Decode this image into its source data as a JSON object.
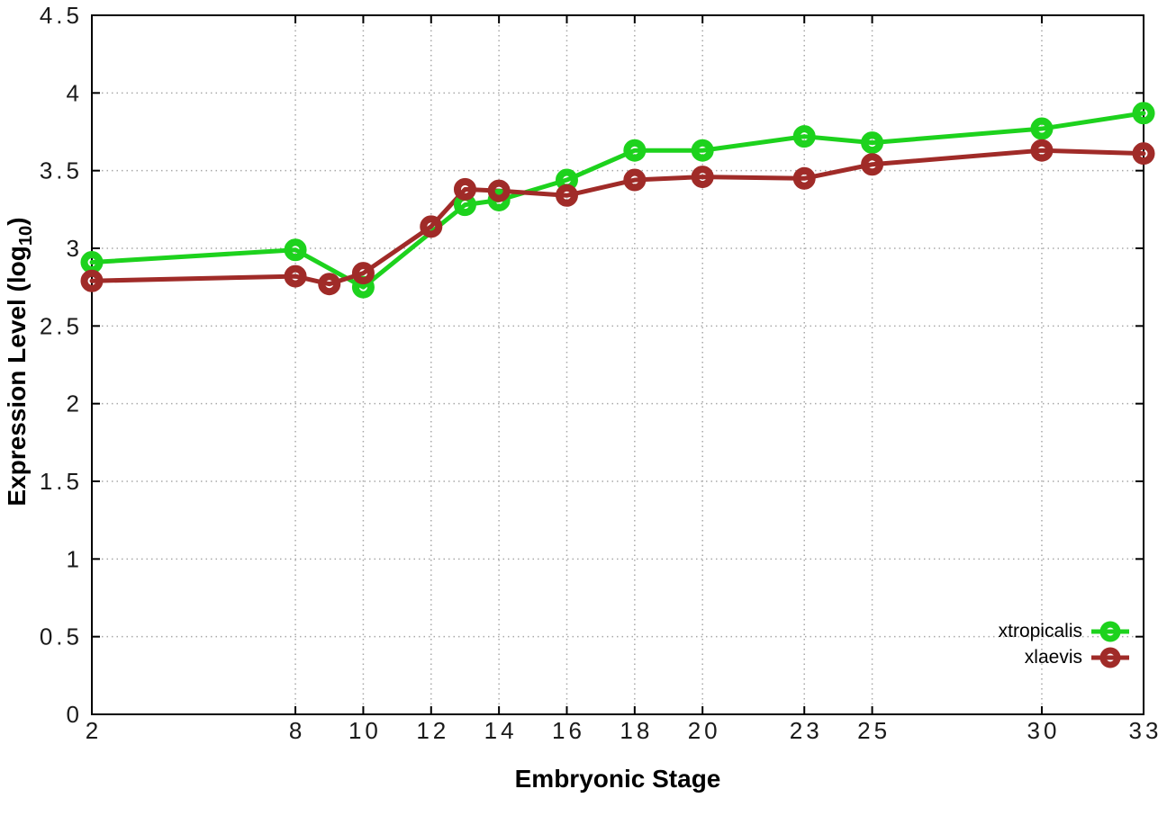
{
  "page": {
    "background": "#ffffff"
  },
  "chart_data": {
    "type": "line",
    "title": "",
    "xlabel": "Embryonic Stage",
    "ylabel": "Expression Level (log10)",
    "ylabel_parts": {
      "prefix": "Expression Level (log",
      "subscript": "10",
      "suffix": ")"
    },
    "xlim": [
      2,
      33
    ],
    "ylim": [
      0,
      4.5
    ],
    "x_ticks": [
      2,
      8,
      10,
      12,
      14,
      16,
      18,
      20,
      23,
      25,
      30,
      33
    ],
    "x_tick_labels": [
      "2",
      "8",
      "10",
      "12",
      "14",
      "16",
      "18",
      "20",
      "23",
      "25",
      "30",
      "33"
    ],
    "y_ticks": [
      0,
      0.5,
      1,
      1.5,
      2,
      2.5,
      3,
      3.5,
      4,
      4.5
    ],
    "y_tick_labels": [
      "0",
      "0.5",
      "1",
      "1.5",
      "2",
      "2.5",
      "3",
      "3.5",
      "4",
      "4.5"
    ],
    "grid": "dotted",
    "grid_color": "#a8a8a8",
    "axis_color": "#000000",
    "legend_position": "inside-bottom-right",
    "marker": "open-circle",
    "series": [
      {
        "name": "xtropicalis",
        "color": "#1dd21d",
        "x": [
          2,
          8,
          10,
          13,
          14,
          16,
          18,
          20,
          23,
          25,
          30,
          33
        ],
        "y": [
          2.91,
          2.99,
          2.75,
          3.28,
          3.31,
          3.44,
          3.63,
          3.63,
          3.72,
          3.68,
          3.77,
          3.87
        ]
      },
      {
        "name": "xlaevis",
        "color": "#a02b28",
        "x": [
          2,
          8,
          9,
          10,
          12,
          13,
          14,
          16,
          18,
          20,
          23,
          25,
          30,
          33
        ],
        "y": [
          2.79,
          2.82,
          2.77,
          2.84,
          3.14,
          3.38,
          3.37,
          3.34,
          3.44,
          3.46,
          3.45,
          3.54,
          3.63,
          3.61
        ]
      }
    ]
  }
}
